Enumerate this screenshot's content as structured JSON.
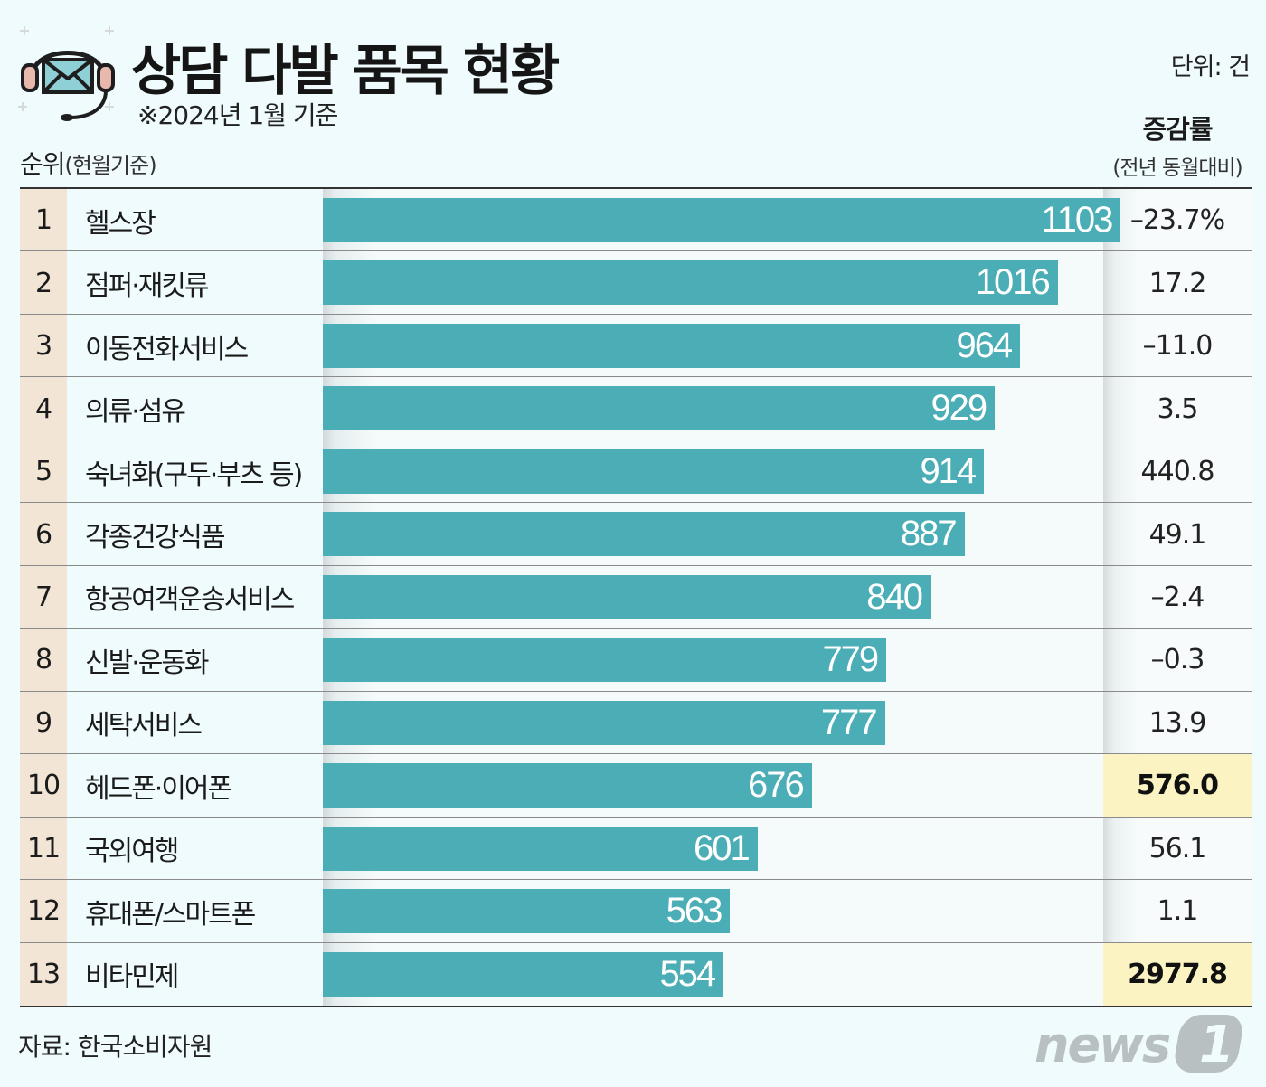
{
  "header": {
    "title": "상담 다발 품목 현황",
    "subtitle": "※2024년 1월 기준",
    "unit": "단위: 건",
    "rank_label": "순위",
    "rank_sub": "(현월기준)",
    "change_title": "증감률",
    "change_sub": "(전년 동월대비)"
  },
  "icons": {
    "logo": "headset-mail-icon",
    "brand": "news1-logo"
  },
  "colors": {
    "bar": "#4baeb6",
    "highlight": "#fbf3c2",
    "rank_band": "#f2e5d6",
    "background": "#effbfc"
  },
  "footer": {
    "source": "자료: 한국소비자원",
    "brand_text": "news",
    "brand_digit": "1"
  },
  "chart_data": {
    "type": "bar",
    "orientation": "horizontal",
    "title": "상담 다발 품목 현황",
    "xlim": [
      0,
      1250
    ],
    "rows": [
      {
        "rank": "1",
        "category": "헬스장",
        "value": 1103,
        "change": "–23.7%",
        "highlight": false
      },
      {
        "rank": "2",
        "category": "점퍼·재킷류",
        "value": 1016,
        "change": "17.2",
        "highlight": false
      },
      {
        "rank": "3",
        "category": "이동전화서비스",
        "value": 964,
        "change": "–11.0",
        "highlight": false
      },
      {
        "rank": "4",
        "category": "의류·섬유",
        "value": 929,
        "change": "3.5",
        "highlight": false
      },
      {
        "rank": "5",
        "category": "숙녀화(구두·부츠 등)",
        "value": 914,
        "change": "440.8",
        "highlight": false
      },
      {
        "rank": "6",
        "category": "각종건강식품",
        "value": 887,
        "change": "49.1",
        "highlight": false
      },
      {
        "rank": "7",
        "category": "항공여객운송서비스",
        "value": 840,
        "change": "–2.4",
        "highlight": false
      },
      {
        "rank": "8",
        "category": "신발·운동화",
        "value": 779,
        "change": "–0.3",
        "highlight": false
      },
      {
        "rank": "9",
        "category": "세탁서비스",
        "value": 777,
        "change": "13.9",
        "highlight": false
      },
      {
        "rank": "10",
        "category": "헤드폰·이어폰",
        "value": 676,
        "change": "576.0",
        "highlight": true
      },
      {
        "rank": "11",
        "category": "국외여행",
        "value": 601,
        "change": "56.1",
        "highlight": false
      },
      {
        "rank": "12",
        "category": "휴대폰/스마트폰",
        "value": 563,
        "change": "1.1",
        "highlight": false
      },
      {
        "rank": "13",
        "category": "비타민제",
        "value": 554,
        "change": "2977.8",
        "highlight": true
      }
    ]
  }
}
